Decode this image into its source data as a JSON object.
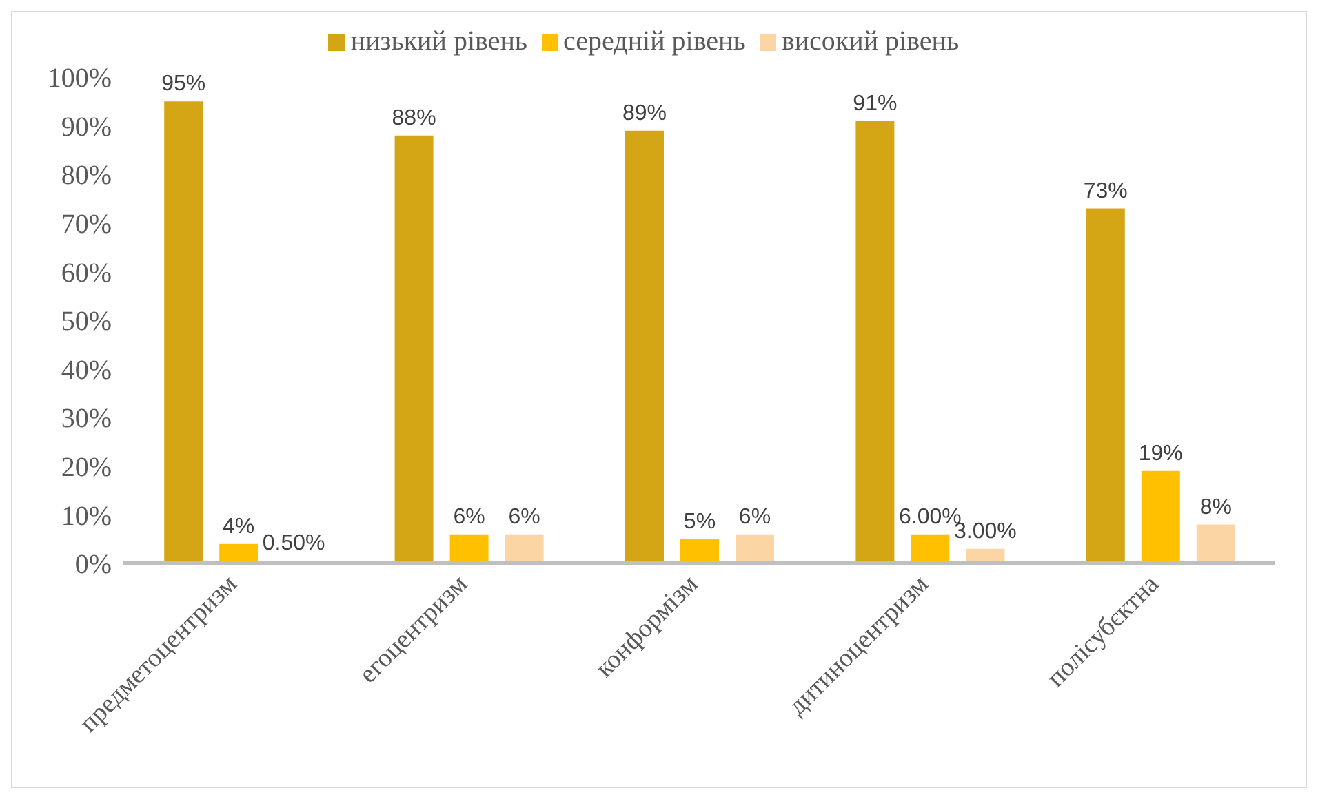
{
  "chart_data": {
    "type": "bar",
    "categories": [
      "предметоцентризм",
      "егоцентризм",
      "конформізм",
      "дитиноцентризм",
      "полісубєктна"
    ],
    "ylim": [
      0,
      100
    ],
    "yticks": [
      {
        "value": 0,
        "label": "0%"
      },
      {
        "value": 10,
        "label": "10%"
      },
      {
        "value": 20,
        "label": "20%"
      },
      {
        "value": 30,
        "label": "30%"
      },
      {
        "value": 40,
        "label": "40%"
      },
      {
        "value": 50,
        "label": "50%"
      },
      {
        "value": 60,
        "label": "60%"
      },
      {
        "value": 70,
        "label": "70%"
      },
      {
        "value": 80,
        "label": "80%"
      },
      {
        "value": 90,
        "label": "90%"
      },
      {
        "value": 100,
        "label": "100%"
      }
    ],
    "grid": false,
    "legend": "top",
    "series": [
      {
        "name": "низький рівень",
        "color": "#d4a514",
        "values": [
          95,
          88,
          89,
          91,
          73
        ],
        "value_labels": [
          "95%",
          "88%",
          "89%",
          "91%",
          "73%"
        ]
      },
      {
        "name": "середній рівень",
        "color": "#ffc000",
        "values": [
          4,
          6,
          5,
          6,
          19
        ],
        "value_labels": [
          "4%",
          "6%",
          "5%",
          "6.00%",
          "19%"
        ]
      },
      {
        "name": "високий рівень",
        "color": "#fcd5a4",
        "values": [
          0.5,
          6,
          6,
          3,
          8
        ],
        "value_labels": [
          "0.50%",
          "6%",
          "6%",
          "3.00%",
          "8%"
        ]
      }
    ]
  }
}
